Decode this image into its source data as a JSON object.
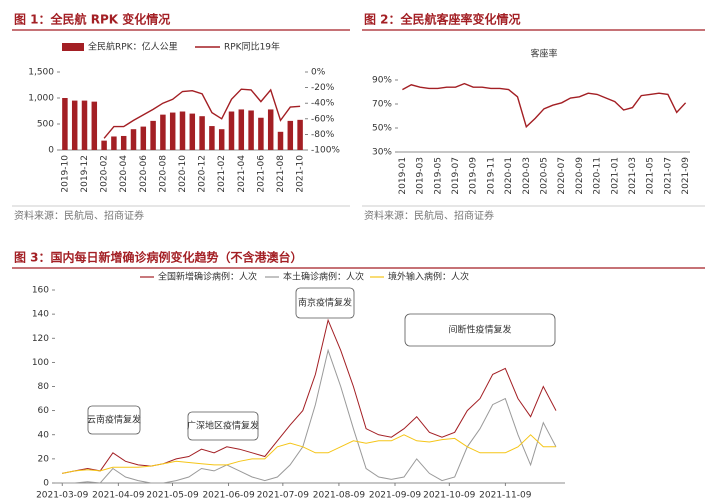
{
  "chart_data": [
    {
      "type": "bar",
      "title": "图 1：全民航 RPK 变化情况",
      "source": "资料来源：民航局、招商证券",
      "categories": [
        "2019-10",
        null,
        "2019-12",
        null,
        "2020-02",
        null,
        "2020-04",
        null,
        "2020-06",
        null,
        "2020-08",
        null,
        "2020-10",
        null,
        "2020-12",
        null,
        "2021-02",
        null,
        "2021-04",
        null,
        "2021-06",
        null,
        "2021-08",
        null,
        "2021-10"
      ],
      "series": [
        {
          "name": "全民航RPK：亿人公里",
          "type": "bar",
          "color": "#a31f24",
          "values": [
            1000,
            950,
            950,
            930,
            180,
            260,
            270,
            400,
            450,
            560,
            680,
            720,
            740,
            700,
            650,
            460,
            400,
            740,
            780,
            760,
            620,
            780,
            350,
            560,
            580
          ]
        },
        {
          "name": "RPK同比19年",
          "type": "line",
          "axis": "y2",
          "color": "#a31f24",
          "values": [
            null,
            null,
            null,
            null,
            -85,
            -70,
            -70,
            -62,
            -55,
            -48,
            -40,
            -35,
            -25,
            -24,
            -28,
            -52,
            -60,
            -35,
            -22,
            -23,
            -38,
            -23,
            -62,
            -45,
            -44
          ]
        }
      ],
      "ylim": [
        0,
        1500
      ],
      "yticks": [
        0,
        500,
        {
          "value": 1000,
          "label": "1,000"
        },
        {
          "value": 1500,
          "label": "1,500"
        }
      ],
      "y2lim": [
        -100,
        0
      ],
      "y2ticks": [
        {
          "value": 0,
          "label": "0%"
        },
        {
          "value": -20,
          "label": "-20%"
        },
        {
          "value": -40,
          "label": "-40%"
        },
        {
          "value": -60,
          "label": "-60%"
        },
        {
          "value": -80,
          "label": "-80%"
        },
        {
          "value": -100,
          "label": "-100%"
        }
      ],
      "grid": false
    },
    {
      "type": "line",
      "title": "图 2：全民航客座率变化情况",
      "source": "资料来源：民航局、招商证券",
      "categories": [
        "2019-01",
        null,
        "2019-03",
        null,
        "2019-05",
        null,
        "2019-07",
        null,
        "2019-09",
        null,
        "2019-11",
        null,
        "2020-01",
        null,
        "2020-03",
        null,
        "2020-05",
        null,
        "2020-07",
        null,
        "2020-09",
        null,
        "2020-11",
        null,
        "2021-01",
        null,
        "2021-03",
        null,
        "2021-05",
        null,
        "2021-07",
        null,
        "2021-09"
      ],
      "series": [
        {
          "name": "客座率",
          "color": "#a31f24",
          "values": [
            82,
            86,
            84,
            83,
            83,
            84,
            84,
            87,
            84,
            84,
            83,
            83,
            82,
            76,
            51,
            58,
            66,
            69,
            71,
            75,
            76,
            79,
            78,
            75,
            72,
            65,
            67,
            77,
            78,
            79,
            78,
            63,
            71
          ]
        }
      ],
      "ylim": [
        30,
        90
      ],
      "yticks": [
        {
          "value": 30,
          "label": "30%"
        },
        {
          "value": 50,
          "label": "50%"
        },
        {
          "value": 70,
          "label": "70%"
        },
        {
          "value": 90,
          "label": "90%"
        }
      ],
      "grid": false
    },
    {
      "type": "line",
      "title": "图 3：国内每日新增确诊病例变化趋势（不含港澳台）",
      "x": [
        "2021-03-09",
        "2021-03-16",
        "2021-03-23",
        "2021-03-30",
        "2021-04-06",
        "2021-04-13",
        "2021-04-20",
        "2021-04-27",
        "2021-05-04",
        "2021-05-11",
        "2021-05-18",
        "2021-05-25",
        "2021-06-01",
        "2021-06-08",
        "2021-06-15",
        "2021-06-22",
        "2021-06-29",
        "2021-07-06",
        "2021-07-13",
        "2021-07-20",
        "2021-07-27",
        "2021-08-03",
        "2021-08-10",
        "2021-08-17",
        "2021-08-24",
        "2021-08-31",
        "2021-09-07",
        "2021-09-14",
        "2021-09-21",
        "2021-09-28",
        "2021-10-05",
        "2021-10-12",
        "2021-10-19",
        "2021-10-26",
        "2021-11-02",
        "2021-11-09",
        "2021-11-16",
        "2021-11-23",
        "2021-11-30",
        "2021-12-07"
      ],
      "series": [
        {
          "name": "全国新增确诊病例：人次",
          "color": "#a31f24",
          "values": [
            8,
            10,
            12,
            10,
            25,
            18,
            15,
            14,
            16,
            20,
            22,
            28,
            25,
            30,
            28,
            25,
            22,
            35,
            48,
            60,
            90,
            135,
            110,
            80,
            45,
            40,
            38,
            45,
            55,
            42,
            38,
            42,
            60,
            70,
            90,
            95,
            70,
            55,
            80,
            60
          ]
        },
        {
          "name": "本土确诊病例：人次",
          "color": "#9a9a9a",
          "values": [
            0,
            0,
            1,
            0,
            12,
            5,
            2,
            0,
            0,
            2,
            5,
            12,
            10,
            15,
            10,
            5,
            2,
            5,
            15,
            30,
            65,
            110,
            80,
            45,
            12,
            5,
            3,
            5,
            20,
            8,
            2,
            5,
            30,
            45,
            65,
            70,
            40,
            15,
            50,
            30
          ]
        },
        {
          "name": "境外输入病例：人次",
          "color": "#f5c518",
          "values": [
            8,
            10,
            11,
            10,
            13,
            13,
            13,
            14,
            16,
            18,
            17,
            16,
            15,
            15,
            18,
            20,
            20,
            30,
            33,
            30,
            25,
            25,
            30,
            35,
            33,
            35,
            35,
            40,
            35,
            34,
            36,
            37,
            30,
            25,
            25,
            25,
            30,
            40,
            30,
            30
          ]
        }
      ],
      "xlim": [
        "2021-03-05",
        "2021-12-12"
      ],
      "xticks": [
        "2021-03-09",
        "2021-04-09",
        "2021-05-09",
        "2021-06-09",
        "2021-07-09",
        "2021-08-09",
        "2021-09-09",
        "2021-10-09",
        "2021-11-09"
      ],
      "ylim": [
        0,
        160
      ],
      "yticks": [
        0,
        20,
        40,
        60,
        80,
        100,
        120,
        140,
        160
      ],
      "annotations": [
        "云南疫情复发",
        "广深地区疫情复发",
        "南京疫情复发",
        "间断性疫情复发"
      ],
      "grid": false
    }
  ]
}
